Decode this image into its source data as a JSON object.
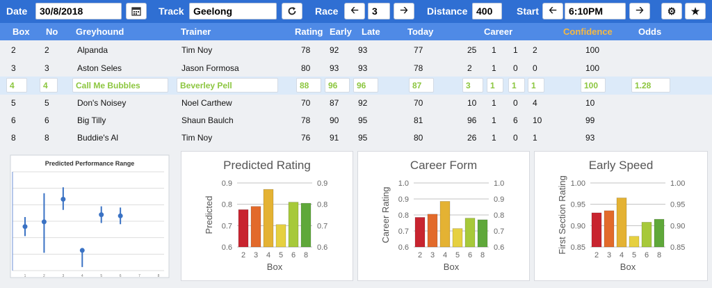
{
  "toolbar": {
    "date_label": "Date",
    "date_value": "30/8/2018",
    "track_label": "Track",
    "track_value": "Geelong",
    "race_label": "Race",
    "race_value": "3",
    "distance_label": "Distance",
    "distance_value": "400",
    "start_label": "Start",
    "start_value": "6:10PM"
  },
  "columns": {
    "box": "Box",
    "no": "No",
    "greyhound": "Greyhound",
    "trainer": "Trainer",
    "rating": "Rating",
    "early": "Early",
    "late": "Late",
    "today": "Today",
    "career": "Career",
    "confidence": "Confidence",
    "odds": "Odds"
  },
  "rows": [
    {
      "box": "2",
      "no": "2",
      "greyhound": "Alpanda",
      "trainer": "Tim Noy",
      "rating": "78",
      "early": "92",
      "late": "93",
      "today": "77",
      "c1": "25",
      "c2": "1",
      "c3": "1",
      "c4": "2",
      "confidence": "100",
      "odds": ""
    },
    {
      "box": "3",
      "no": "3",
      "greyhound": "Aston Seles",
      "trainer": "Jason Formosa",
      "rating": "80",
      "early": "93",
      "late": "93",
      "today": "78",
      "c1": "2",
      "c2": "1",
      "c3": "0",
      "c4": "0",
      "confidence": "100",
      "odds": ""
    },
    {
      "box": "4",
      "no": "4",
      "greyhound": "Call Me Bubbles",
      "trainer": "Beverley Pell",
      "rating": "88",
      "early": "96",
      "late": "96",
      "today": "87",
      "c1": "3",
      "c2": "1",
      "c3": "1",
      "c4": "1",
      "confidence": "100",
      "odds": "1.28"
    },
    {
      "box": "5",
      "no": "5",
      "greyhound": "Don's Noisey",
      "trainer": "Noel Carthew",
      "rating": "70",
      "early": "87",
      "late": "92",
      "today": "70",
      "c1": "10",
      "c2": "1",
      "c3": "0",
      "c4": "4",
      "confidence": "10",
      "odds": ""
    },
    {
      "box": "6",
      "no": "6",
      "greyhound": "Big Tilly",
      "trainer": "Shaun Baulch",
      "rating": "78",
      "early": "90",
      "late": "95",
      "today": "81",
      "c1": "96",
      "c2": "1",
      "c3": "6",
      "c4": "10",
      "confidence": "99",
      "odds": ""
    },
    {
      "box": "8",
      "no": "8",
      "greyhound": "Buddie's Al",
      "trainer": "Tim Noy",
      "rating": "76",
      "early": "91",
      "late": "95",
      "today": "80",
      "c1": "26",
      "c2": "1",
      "c3": "0",
      "c4": "1",
      "confidence": "93",
      "odds": ""
    }
  ],
  "colors": {
    "topbar": "#2f6fd3",
    "header": "#4f8ae6",
    "highlight_text": "#8cc63f",
    "confidence_header": "#f5b942"
  },
  "icons": {
    "calendar": "calendar-icon",
    "refresh": "refresh-icon",
    "prev": "arrow-left-icon",
    "next": "arrow-right-icon",
    "settings": "gear-icon",
    "favorite": "star-icon"
  },
  "chart_data": [
    {
      "type": "scatter",
      "title": "Predicted Performance Range",
      "x": [
        1,
        2,
        3,
        4,
        5,
        6,
        7,
        8
      ],
      "points": [
        {
          "x": 1,
          "y": 0.52,
          "lo": 0.44,
          "hi": 0.6
        },
        {
          "x": 2,
          "y": 0.56,
          "lo": 0.3,
          "hi": 0.8
        },
        {
          "x": 3,
          "y": 0.75,
          "lo": 0.66,
          "hi": 0.85
        },
        {
          "x": 4,
          "y": 0.32,
          "lo": 0.18,
          "hi": 0.32
        },
        {
          "x": 5,
          "y": 0.62,
          "lo": 0.55,
          "hi": 0.69
        },
        {
          "x": 6,
          "y": 0.61,
          "lo": 0.54,
          "hi": 0.68
        }
      ],
      "ylim": [
        0.15,
        0.98
      ]
    },
    {
      "type": "bar",
      "title": "Predicted Rating",
      "xlabel": "Box",
      "ylabel": "Predicted",
      "categories": [
        "2",
        "3",
        "4",
        "5",
        "6",
        "8"
      ],
      "values": [
        0.775,
        0.79,
        0.87,
        0.705,
        0.81,
        0.805
      ],
      "ylim": [
        0.6,
        0.9
      ],
      "yticks": [
        "0.6",
        "0.7",
        "0.8",
        "0.9"
      ],
      "bar_colors": [
        "#c8242f",
        "#e26a2b",
        "#e4b233",
        "#e6d040",
        "#a7c93a",
        "#5fa83a"
      ]
    },
    {
      "type": "bar",
      "title": "Career Form",
      "xlabel": "Box",
      "ylabel": "Career Rating",
      "categories": [
        "2",
        "3",
        "4",
        "5",
        "6",
        "8"
      ],
      "values": [
        0.785,
        0.805,
        0.885,
        0.715,
        0.78,
        0.77
      ],
      "ylim": [
        0.6,
        1.0
      ],
      "yticks": [
        "0.6",
        "0.7",
        "0.8",
        "0.9",
        "1.0"
      ],
      "bar_colors": [
        "#c8242f",
        "#e26a2b",
        "#e4b233",
        "#e6d040",
        "#a7c93a",
        "#5fa83a"
      ]
    },
    {
      "type": "bar",
      "title": "Early Speed",
      "xlabel": "Box",
      "ylabel": "First Section Rating",
      "categories": [
        "2",
        "3",
        "4",
        "5",
        "6",
        "8"
      ],
      "values": [
        0.93,
        0.935,
        0.965,
        0.875,
        0.908,
        0.915
      ],
      "ylim": [
        0.85,
        1.0
      ],
      "yticks": [
        "0.85",
        "0.90",
        "0.95",
        "1.00"
      ],
      "bar_colors": [
        "#c8242f",
        "#e26a2b",
        "#e4b233",
        "#e6d040",
        "#a7c93a",
        "#5fa83a"
      ]
    }
  ]
}
